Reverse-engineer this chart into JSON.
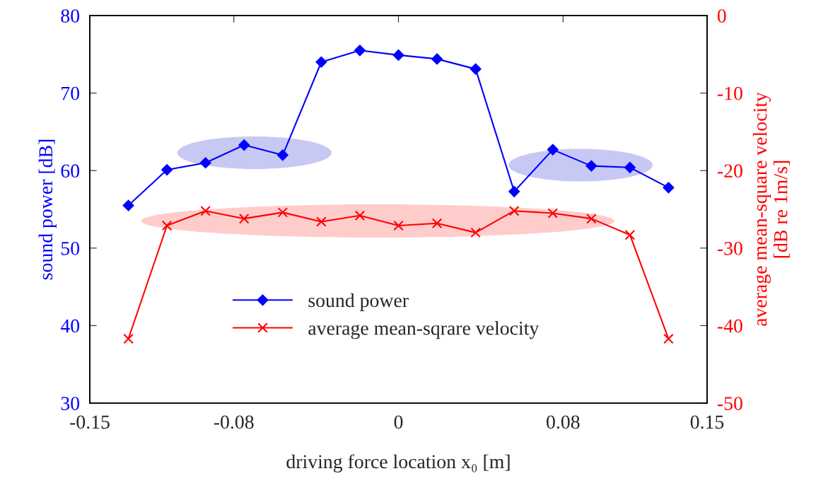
{
  "chart_data": {
    "type": "line",
    "xlabel": "driving force location x₀ [m]",
    "ylabel": "sound power [dB]",
    "y2label": "average mean-square velocity\n[dB re 1m/s]",
    "x": [
      -0.13125,
      -0.1125,
      -0.09375,
      -0.075,
      -0.05625,
      -0.0375,
      -0.01875,
      0,
      0.01875,
      0.0375,
      0.05625,
      0.075,
      0.09375,
      0.1125,
      0.13125
    ],
    "series": [
      {
        "name": "sound power",
        "color": "#0000ff",
        "marker": "diamond",
        "values": [
          55.5,
          60.1,
          61.0,
          63.3,
          62.0,
          74.0,
          75.5,
          74.9,
          74.4,
          73.1,
          57.3,
          62.7,
          60.6,
          60.4,
          57.8
        ]
      },
      {
        "name": "average mean-sqrare velocity",
        "color": "#ff0000",
        "marker": "cross",
        "axis": "y2",
        "values": [
          -41.7,
          -27.1,
          -25.2,
          -26.2,
          -25.4,
          -26.6,
          -25.8,
          -27.1,
          -26.8,
          -28.0,
          -25.2,
          -25.5,
          -26.2,
          -28.3,
          -41.7
        ]
      }
    ],
    "xlim": [
      -0.15,
      0.15
    ],
    "xticks": [
      -0.15,
      -0.08,
      0,
      0.08,
      0.15
    ],
    "ylim": [
      30,
      80
    ],
    "yticks": [
      30,
      40,
      50,
      60,
      70,
      80
    ],
    "y2lim": [
      -50,
      0
    ],
    "y2ticks": [
      -50,
      -40,
      -30,
      -20,
      -10,
      0
    ],
    "legend": "bottom",
    "grid": false,
    "line_style": "solid"
  }
}
